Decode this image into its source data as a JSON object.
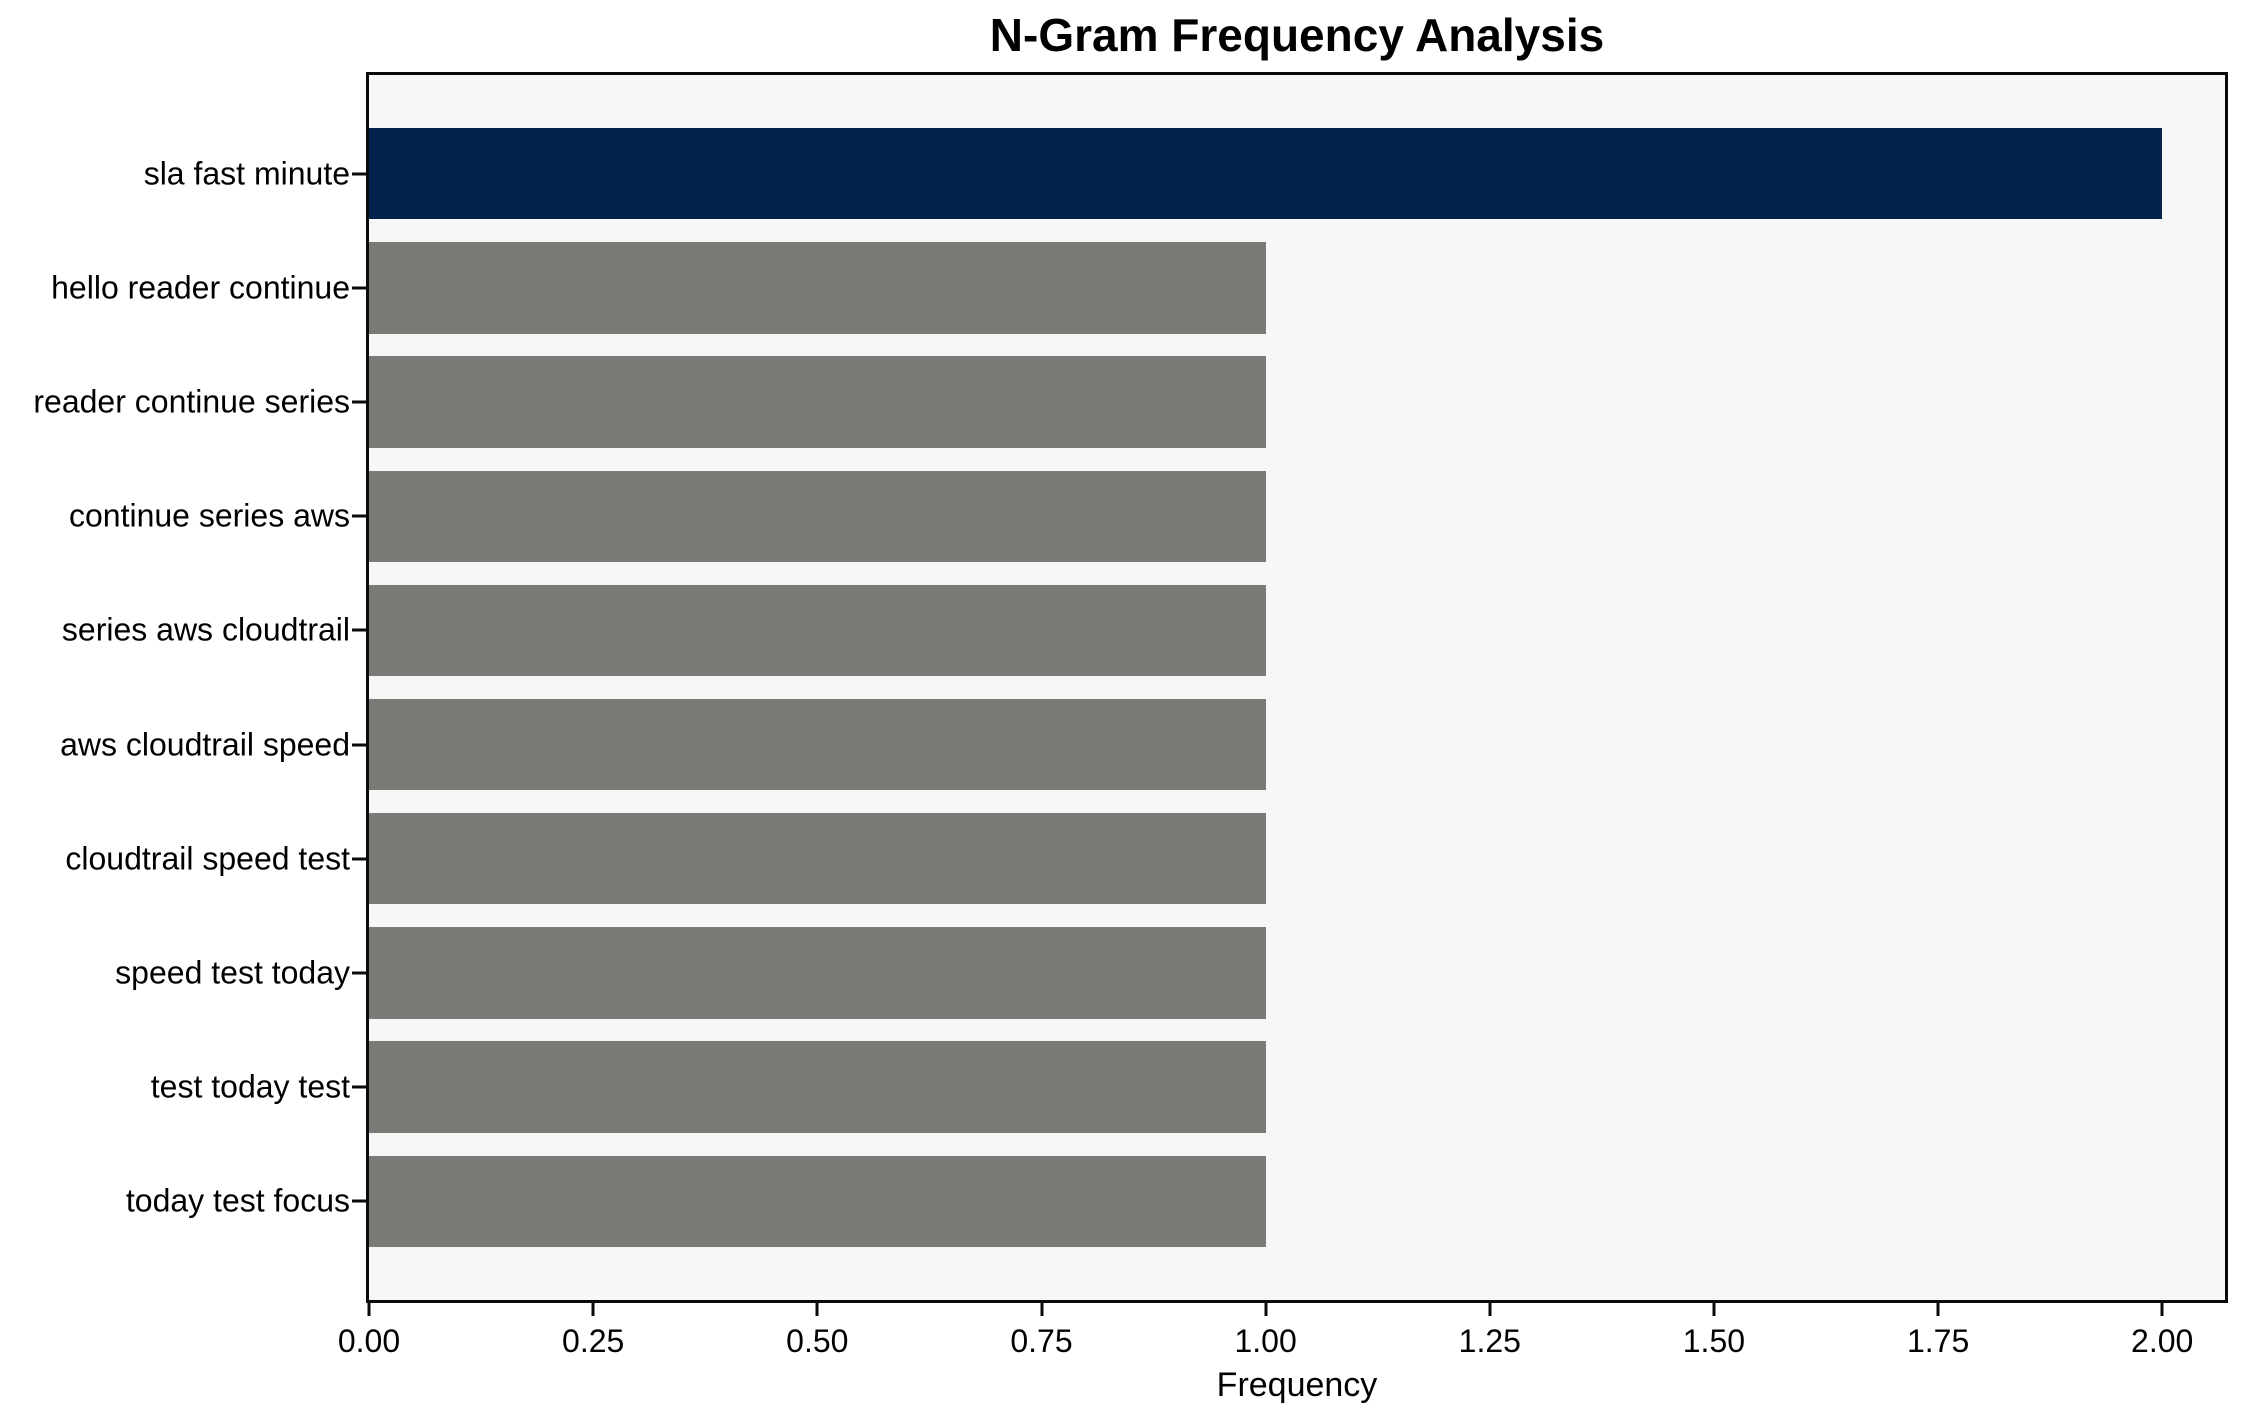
{
  "title": "N-Gram Frequency Analysis",
  "chart_data": {
    "type": "bar",
    "orientation": "horizontal",
    "title": "N-Gram Frequency Analysis",
    "xlabel": "Frequency",
    "ylabel": "",
    "categories": [
      "sla fast minute",
      "hello reader continue",
      "reader continue series",
      "continue series aws",
      "series aws cloudtrail",
      "aws cloudtrail speed",
      "cloudtrail speed test",
      "speed test today",
      "test today test",
      "today test focus"
    ],
    "values": [
      2,
      1,
      1,
      1,
      1,
      1,
      1,
      1,
      1,
      1
    ],
    "highlight_index": 0,
    "xlim": [
      0,
      2.07
    ],
    "xticks": [
      0,
      0.25,
      0.5,
      0.75,
      1.0,
      1.25,
      1.5,
      1.75,
      2.0
    ],
    "xtick_labels": [
      "0.00",
      "0.25",
      "0.50",
      "0.75",
      "1.00",
      "1.25",
      "1.50",
      "1.75",
      "2.00"
    ],
    "grid": false,
    "legend": null,
    "colors": {
      "highlight_bar": "#03224c",
      "default_bar": "#7a7a76",
      "plot_background": "#f7f7f7",
      "figure_background": "#ffffff",
      "spine": "#0a0a0a",
      "text": "#000000"
    }
  }
}
